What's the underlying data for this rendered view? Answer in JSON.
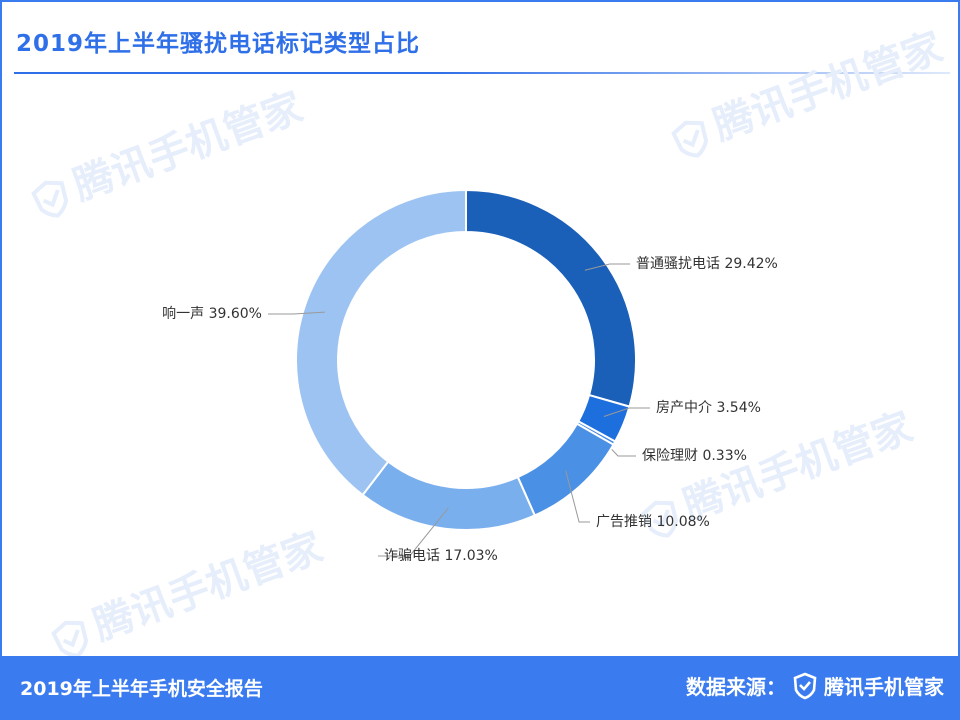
{
  "page": {
    "title": "2019年上半年骚扰电话标记类型占比",
    "watermark_text": "腾讯手机管家",
    "footer_left": "2019年上半年手机安全报告",
    "footer_source_label": "数据来源：",
    "footer_brand": "腾讯手机管家"
  },
  "colors": {
    "accent": "#3a7bf0",
    "title": "#2f6fe8",
    "watermark": "#e6eefb"
  },
  "chart_data": {
    "type": "pie",
    "variant": "donut",
    "title": "2019年上半年骚扰电话标记类型占比",
    "unit": "%",
    "slices": [
      {
        "label": "普通骚扰电话",
        "value": 29.42,
        "display": "普通骚扰电话 29.42%",
        "color": "#1a5fb8"
      },
      {
        "label": "房产中介",
        "value": 3.54,
        "display": "房产中介 3.54%",
        "color": "#1c6fdc"
      },
      {
        "label": "保险理财",
        "value": 0.33,
        "display": "保险理财 0.33%",
        "color": "#3a86e8"
      },
      {
        "label": "广告推销",
        "value": 10.08,
        "display": "广告推销 10.08%",
        "color": "#4a90e4"
      },
      {
        "label": "诈骗电话",
        "value": 17.03,
        "display": "诈骗电话 17.03%",
        "color": "#7aafee"
      },
      {
        "label": "响一声",
        "value": 39.6,
        "display": "响一声 39.60%",
        "color": "#9cc3f2"
      }
    ]
  }
}
